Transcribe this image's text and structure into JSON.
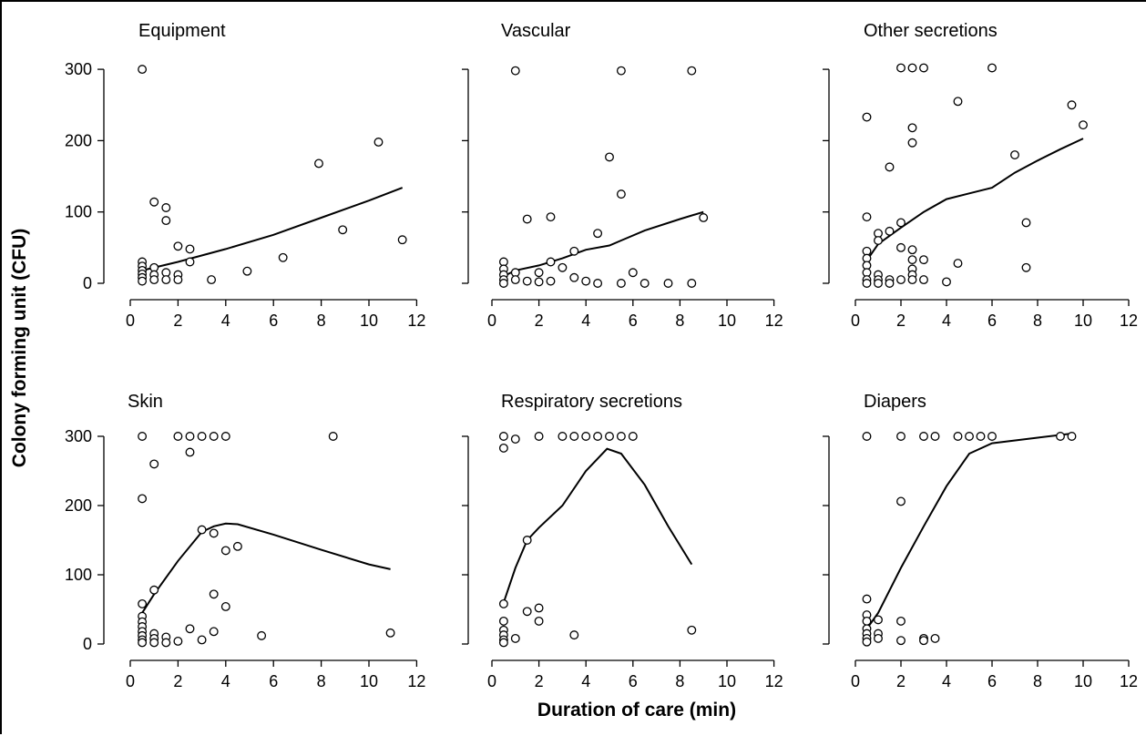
{
  "figure": {
    "ylabel": "Colony forming unit (CFU)",
    "xlabel": "Duration of care (min)"
  },
  "chart_data": [
    {
      "type": "scatter",
      "title": "Equipment",
      "xlim": [
        0,
        12
      ],
      "ylim": [
        0,
        300
      ],
      "xticks": [
        "0",
        "2",
        "4",
        "6",
        "8",
        "10",
        "12"
      ],
      "yticks": [
        "0",
        "100",
        "200",
        "300"
      ],
      "points": [
        [
          0.5,
          300
        ],
        [
          0.5,
          30
        ],
        [
          0.5,
          24
        ],
        [
          0.5,
          18
        ],
        [
          0.5,
          13
        ],
        [
          0.5,
          8
        ],
        [
          0.5,
          3
        ],
        [
          1,
          114
        ],
        [
          1,
          22
        ],
        [
          1,
          12
        ],
        [
          1,
          5
        ],
        [
          1.5,
          106
        ],
        [
          1.5,
          88
        ],
        [
          1.5,
          15
        ],
        [
          1.5,
          5
        ],
        [
          2,
          52
        ],
        [
          2,
          12
        ],
        [
          2,
          5
        ],
        [
          2.5,
          48
        ],
        [
          2.5,
          30
        ],
        [
          3.4,
          5
        ],
        [
          4.9,
          17
        ],
        [
          6.4,
          36
        ],
        [
          7.9,
          168
        ],
        [
          8.9,
          75
        ],
        [
          10.4,
          198
        ],
        [
          11.4,
          61
        ]
      ],
      "trend": [
        [
          0.5,
          18
        ],
        [
          2,
          30
        ],
        [
          4,
          48
        ],
        [
          6,
          68
        ],
        [
          8,
          92
        ],
        [
          10,
          116
        ],
        [
          11.4,
          134
        ]
      ]
    },
    {
      "type": "scatter",
      "title": "Vascular",
      "xlim": [
        0,
        12
      ],
      "ylim": [
        0,
        300
      ],
      "xticks": [
        "0",
        "2",
        "4",
        "6",
        "8",
        "10",
        "12"
      ],
      "yticks": [
        "0",
        "100",
        "200",
        "300"
      ],
      "points": [
        [
          1,
          298
        ],
        [
          5.5,
          298
        ],
        [
          8.5,
          298
        ],
        [
          5,
          177
        ],
        [
          5.5,
          125
        ],
        [
          1.5,
          90
        ],
        [
          2.5,
          93
        ],
        [
          4.5,
          70
        ],
        [
          9,
          92
        ],
        [
          3.5,
          45
        ],
        [
          2.5,
          30
        ],
        [
          3,
          22
        ],
        [
          0.5,
          30
        ],
        [
          0.5,
          20
        ],
        [
          0.5,
          12
        ],
        [
          0.5,
          5
        ],
        [
          0.5,
          0
        ],
        [
          1,
          15
        ],
        [
          1,
          5
        ],
        [
          1.5,
          3
        ],
        [
          2,
          15
        ],
        [
          2,
          2
        ],
        [
          2.5,
          3
        ],
        [
          3.5,
          8
        ],
        [
          4,
          3
        ],
        [
          4.5,
          0
        ],
        [
          5.5,
          0
        ],
        [
          6,
          15
        ],
        [
          6.5,
          0
        ],
        [
          7.5,
          0
        ],
        [
          8.5,
          0
        ]
      ],
      "trend": [
        [
          0.5,
          10
        ],
        [
          1,
          18
        ],
        [
          2,
          25
        ],
        [
          3,
          35
        ],
        [
          4,
          47
        ],
        [
          5,
          53
        ],
        [
          5.5,
          60
        ],
        [
          6.5,
          74
        ],
        [
          8,
          90
        ],
        [
          9,
          100
        ]
      ]
    },
    {
      "type": "scatter",
      "title": "Other secretions",
      "xlim": [
        0,
        12
      ],
      "ylim": [
        0,
        300
      ],
      "xticks": [
        "0",
        "2",
        "4",
        "6",
        "8",
        "10",
        "12"
      ],
      "yticks": [
        "0",
        "100",
        "200",
        "300"
      ],
      "points": [
        [
          2,
          302
        ],
        [
          2.5,
          302
        ],
        [
          3,
          302
        ],
        [
          6,
          302
        ],
        [
          0.5,
          233
        ],
        [
          4.5,
          255
        ],
        [
          9.5,
          250
        ],
        [
          10,
          222
        ],
        [
          2.5,
          218
        ],
        [
          2.5,
          197
        ],
        [
          7,
          180
        ],
        [
          1.5,
          163
        ],
        [
          0.5,
          93
        ],
        [
          1,
          70
        ],
        [
          1,
          60
        ],
        [
          1.5,
          73
        ],
        [
          2,
          85
        ],
        [
          2,
          50
        ],
        [
          2.5,
          47
        ],
        [
          2.5,
          33
        ],
        [
          3,
          33
        ],
        [
          4.5,
          28
        ],
        [
          7.5,
          85
        ],
        [
          7.5,
          22
        ],
        [
          0.5,
          45
        ],
        [
          0.5,
          35
        ],
        [
          0.5,
          25
        ],
        [
          0.5,
          15
        ],
        [
          0.5,
          5
        ],
        [
          0.5,
          0
        ],
        [
          1,
          12
        ],
        [
          1,
          5
        ],
        [
          1,
          0
        ],
        [
          1.5,
          5
        ],
        [
          1.5,
          0
        ],
        [
          2,
          5
        ],
        [
          2.5,
          20
        ],
        [
          2.5,
          12
        ],
        [
          2.5,
          5
        ],
        [
          3,
          5
        ],
        [
          4,
          2
        ]
      ],
      "trend": [
        [
          0.5,
          32
        ],
        [
          1,
          55
        ],
        [
          2,
          78
        ],
        [
          3,
          100
        ],
        [
          4,
          118
        ],
        [
          5,
          126
        ],
        [
          6,
          134
        ],
        [
          7,
          155
        ],
        [
          8,
          172
        ],
        [
          9,
          188
        ],
        [
          10,
          203
        ]
      ]
    },
    {
      "type": "scatter",
      "title": "Skin",
      "xlim": [
        0,
        12
      ],
      "ylim": [
        0,
        300
      ],
      "xticks": [
        "0",
        "2",
        "4",
        "6",
        "8",
        "10",
        "12"
      ],
      "yticks": [
        "0",
        "100",
        "200",
        "300"
      ],
      "points": [
        [
          0.5,
          300
        ],
        [
          2,
          300
        ],
        [
          2.5,
          300
        ],
        [
          3,
          300
        ],
        [
          3.5,
          300
        ],
        [
          4,
          300
        ],
        [
          8.5,
          300
        ],
        [
          2.5,
          277
        ],
        [
          1,
          260
        ],
        [
          0.5,
          210
        ],
        [
          3,
          165
        ],
        [
          3.5,
          160
        ],
        [
          4.5,
          141
        ],
        [
          4,
          135
        ],
        [
          1,
          78
        ],
        [
          3.5,
          72
        ],
        [
          0.5,
          58
        ],
        [
          4,
          54
        ],
        [
          0.5,
          40
        ],
        [
          0.5,
          32
        ],
        [
          0.5,
          25
        ],
        [
          0.5,
          18
        ],
        [
          0.5,
          12
        ],
        [
          0.5,
          6
        ],
        [
          0.5,
          2
        ],
        [
          1,
          15
        ],
        [
          1,
          8
        ],
        [
          1,
          2
        ],
        [
          1.5,
          10
        ],
        [
          1.5,
          2
        ],
        [
          2,
          4
        ],
        [
          2.5,
          22
        ],
        [
          3,
          6
        ],
        [
          3.5,
          18
        ],
        [
          5.5,
          12
        ],
        [
          10.9,
          16
        ]
      ],
      "trend": [
        [
          0.5,
          45
        ],
        [
          1,
          72
        ],
        [
          2,
          120
        ],
        [
          3,
          162
        ],
        [
          3.5,
          170
        ],
        [
          4,
          174
        ],
        [
          4.5,
          173
        ],
        [
          6,
          158
        ],
        [
          8,
          136
        ],
        [
          10,
          115
        ],
        [
          10.9,
          108
        ]
      ]
    },
    {
      "type": "scatter",
      "title": "Respiratory secretions",
      "xlim": [
        0,
        12
      ],
      "ylim": [
        0,
        300
      ],
      "xticks": [
        "0",
        "2",
        "4",
        "6",
        "8",
        "10",
        "12"
      ],
      "yticks": [
        "0",
        "100",
        "200",
        "300"
      ],
      "points": [
        [
          0.5,
          300
        ],
        [
          1,
          296
        ],
        [
          2,
          300
        ],
        [
          3,
          300
        ],
        [
          3.5,
          300
        ],
        [
          4,
          300
        ],
        [
          4.5,
          300
        ],
        [
          5,
          300
        ],
        [
          5.5,
          300
        ],
        [
          6,
          300
        ],
        [
          0.5,
          283
        ],
        [
          1.5,
          150
        ],
        [
          0.5,
          58
        ],
        [
          1.5,
          47
        ],
        [
          2,
          52
        ],
        [
          2,
          33
        ],
        [
          3.5,
          13
        ],
        [
          8.5,
          20
        ],
        [
          0.5,
          33
        ],
        [
          0.5,
          20
        ],
        [
          0.5,
          13
        ],
        [
          0.5,
          6
        ],
        [
          0.5,
          2
        ],
        [
          1,
          8
        ]
      ],
      "trend": [
        [
          0.5,
          60
        ],
        [
          1,
          110
        ],
        [
          1.5,
          150
        ],
        [
          2,
          168
        ],
        [
          3,
          200
        ],
        [
          4,
          250
        ],
        [
          4.9,
          282
        ],
        [
          5.5,
          275
        ],
        [
          6.5,
          230
        ],
        [
          7.5,
          170
        ],
        [
          8.5,
          115
        ]
      ]
    },
    {
      "type": "scatter",
      "title": "Diapers",
      "xlim": [
        0,
        12
      ],
      "ylim": [
        0,
        300
      ],
      "xticks": [
        "0",
        "2",
        "4",
        "6",
        "8",
        "10",
        "12"
      ],
      "yticks": [
        "0",
        "100",
        "200",
        "300"
      ],
      "points": [
        [
          0.5,
          300
        ],
        [
          2,
          300
        ],
        [
          3,
          300
        ],
        [
          3.5,
          300
        ],
        [
          4.5,
          300
        ],
        [
          5,
          300
        ],
        [
          5.5,
          300
        ],
        [
          6,
          300
        ],
        [
          9,
          300
        ],
        [
          9.5,
          300
        ],
        [
          2,
          206
        ],
        [
          0.5,
          65
        ],
        [
          0.5,
          42
        ],
        [
          0.5,
          33
        ],
        [
          0.5,
          22
        ],
        [
          0.5,
          15
        ],
        [
          0.5,
          8
        ],
        [
          0.5,
          3
        ],
        [
          1,
          35
        ],
        [
          1,
          15
        ],
        [
          1,
          8
        ],
        [
          2,
          33
        ],
        [
          2,
          5
        ],
        [
          3,
          8
        ],
        [
          3,
          5
        ],
        [
          3.5,
          8
        ]
      ],
      "trend": [
        [
          0.5,
          22
        ],
        [
          1,
          45
        ],
        [
          2,
          110
        ],
        [
          3,
          170
        ],
        [
          4,
          228
        ],
        [
          5,
          275
        ],
        [
          6,
          290
        ],
        [
          8,
          298
        ],
        [
          9.5,
          304
        ]
      ]
    }
  ]
}
